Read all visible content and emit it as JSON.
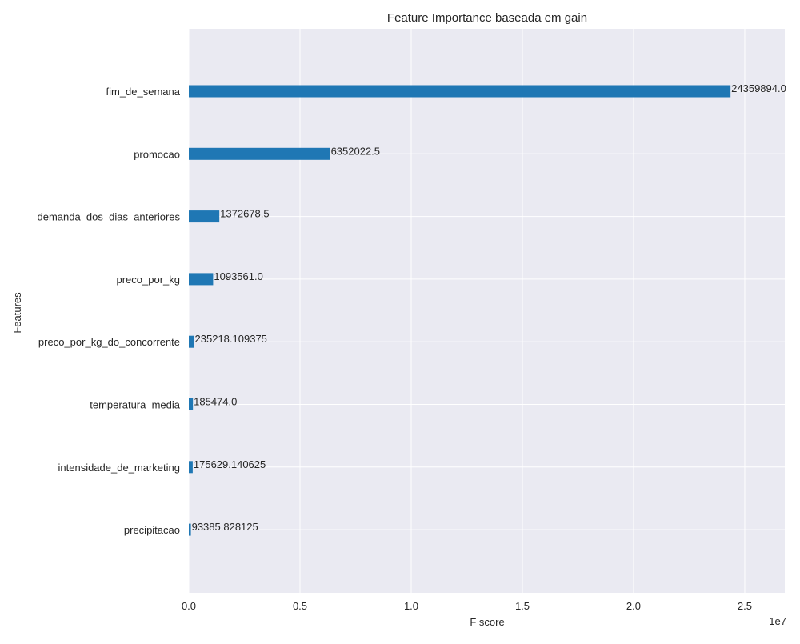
{
  "colors": {
    "background": "#ffffff",
    "plot_background": "#eaeaf2",
    "grid": "#ffffff",
    "bar": "#1f77b4",
    "text": "#262626"
  },
  "chart_data": {
    "type": "bar",
    "orientation": "horizontal",
    "title": "Feature Importance baseada em gain",
    "xlabel": "F score",
    "ylabel": "Features",
    "x_offset_label": "1e7",
    "x_scale": 10000000,
    "xlim": [
      0,
      26800000
    ],
    "xticks": [
      0,
      5000000,
      10000000,
      15000000,
      20000000,
      25000000
    ],
    "xtick_labels": [
      "0.0",
      "0.5",
      "1.0",
      "1.5",
      "2.0",
      "2.5"
    ],
    "grid": true,
    "categories": [
      "fim_de_semana",
      "promocao",
      "demanda_dos_dias_anteriores",
      "preco_por_kg",
      "preco_por_kg_do_concorrente",
      "temperatura_media",
      "intensidade_de_marketing",
      "precipitacao"
    ],
    "values": [
      24359894.0,
      6352022.5,
      1372678.5,
      1093561.0,
      235218.109375,
      185474.0,
      175629.140625,
      93385.828125
    ],
    "value_labels": [
      "24359894.0",
      "6352022.5",
      "1372678.5",
      "1093561.0",
      "235218.109375",
      "185474.0",
      "175629.140625",
      "93385.828125"
    ]
  }
}
